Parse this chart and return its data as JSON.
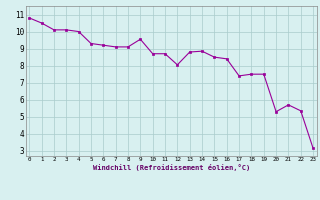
{
  "x": [
    0,
    1,
    2,
    3,
    4,
    5,
    6,
    7,
    8,
    9,
    10,
    11,
    12,
    13,
    14,
    15,
    16,
    17,
    18,
    19,
    20,
    21,
    22,
    23
  ],
  "y": [
    10.8,
    10.5,
    10.1,
    10.1,
    10.0,
    9.3,
    9.2,
    9.1,
    9.1,
    9.55,
    8.7,
    8.7,
    8.05,
    8.8,
    8.85,
    8.5,
    8.4,
    7.4,
    7.5,
    7.5,
    5.3,
    5.7,
    5.35,
    3.15
  ],
  "xlabel": "Windchill (Refroidissement éolien,°C)",
  "yticks": [
    3,
    4,
    5,
    6,
    7,
    8,
    9,
    10,
    11
  ],
  "xticks": [
    0,
    1,
    2,
    3,
    4,
    5,
    6,
    7,
    8,
    9,
    10,
    11,
    12,
    13,
    14,
    15,
    16,
    17,
    18,
    19,
    20,
    21,
    22,
    23
  ],
  "line_color": "#990099",
  "marker_color": "#990099",
  "bg_color": "#d8f0f0",
  "grid_color": "#aacccc",
  "border_color": "#888888"
}
